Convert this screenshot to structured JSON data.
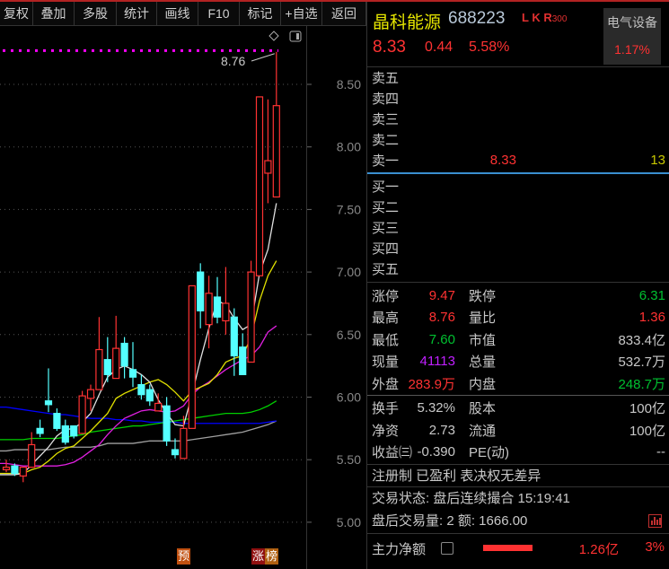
{
  "toolbar": {
    "items": [
      "复权",
      "叠加",
      "多股",
      "统计",
      "画线",
      "F10",
      "标记",
      "+自选",
      "返回"
    ]
  },
  "stock": {
    "name": "晶科能源",
    "code": "688223",
    "flags": "L K R",
    "index_tag": "300",
    "price": "8.33",
    "change": "0.44",
    "change_pct": "5.58%",
    "sector": "电气设备",
    "sector_pct": "1.17%"
  },
  "order_book": {
    "asks": [
      {
        "label": "卖五",
        "price": "",
        "vol": ""
      },
      {
        "label": "卖四",
        "price": "",
        "vol": ""
      },
      {
        "label": "卖三",
        "price": "",
        "vol": ""
      },
      {
        "label": "卖二",
        "price": "",
        "vol": ""
      },
      {
        "label": "卖一",
        "price": "8.33",
        "vol": "13"
      }
    ],
    "bids": [
      {
        "label": "买一"
      },
      {
        "label": "买二"
      },
      {
        "label": "买三"
      },
      {
        "label": "买四"
      },
      {
        "label": "买五"
      }
    ]
  },
  "stats": [
    {
      "a": "涨停",
      "b": "9.47",
      "bc": "red",
      "c": "跌停",
      "d": "6.31",
      "dc": "green"
    },
    {
      "a": "最高",
      "b": "8.76",
      "bc": "red",
      "c": "量比",
      "d": "1.36",
      "dc": "red"
    },
    {
      "a": "最低",
      "b": "7.60",
      "bc": "green",
      "c": "市值",
      "d": "833.4亿",
      "dc": "gray"
    },
    {
      "a": "现量",
      "b": "41113",
      "bc": "purple",
      "c": "总量",
      "d": "532.7万",
      "dc": "gray"
    },
    {
      "a": "外盘",
      "b": "283.9万",
      "bc": "red",
      "c": "内盘",
      "d": "248.7万",
      "dc": "green"
    }
  ],
  "stats2": [
    {
      "a": "换手",
      "b": "5.32%",
      "c": "股本",
      "d": "100亿"
    },
    {
      "a": "净资",
      "b": "2.73",
      "c": "流通",
      "d": "100亿"
    },
    {
      "a": "收益㈢",
      "b": "-0.390",
      "c": "PE(动)",
      "d": "--"
    }
  ],
  "info_line": "注册制 已盈利 表决权无差异",
  "trade_status": "交易状态: 盘后连续撮合 15:19:41",
  "after_hours": "盘后交易量: 2  额: 1666.00",
  "main_flow": {
    "label": "主力净额",
    "amount": "1.26亿",
    "pct": "3%",
    "bar_fraction": 0.55
  },
  "chart_tags": {
    "pre": "预",
    "up1": "涨",
    "up2": "榜"
  },
  "colors": {
    "up": "#ff3232",
    "down": "#54ffff",
    "ma_white": "#e0e0e0",
    "ma_yellow": "#e0e000",
    "ma_magenta": "#e020e0",
    "ma_green": "#00d000",
    "ma_blue": "#0000ff",
    "ma_gray": "#a0a0a0"
  },
  "chart_data": {
    "type": "candlestick",
    "y_ticks": [
      "8.50",
      "8.00",
      "7.50",
      "7.00",
      "6.50",
      "6.00",
      "5.50",
      "5.00"
    ],
    "ylim": [
      4.7,
      8.75
    ],
    "high_marker": "8.76",
    "high_line": 8.77,
    "ohlc": [
      [
        5.42,
        5.5,
        5.4,
        5.44
      ],
      [
        5.45,
        5.47,
        5.37,
        5.39
      ],
      [
        5.37,
        5.44,
        5.32,
        5.44
      ],
      [
        5.44,
        5.72,
        5.44,
        5.62
      ],
      [
        5.75,
        5.82,
        5.68,
        5.71
      ],
      [
        5.97,
        6.23,
        5.88,
        5.94
      ],
      [
        5.87,
        5.91,
        5.73,
        5.75
      ],
      [
        5.77,
        5.82,
        5.62,
        5.64
      ],
      [
        5.77,
        5.77,
        5.67,
        5.69
      ],
      [
        5.71,
        6.05,
        5.71,
        6.01
      ],
      [
        5.99,
        6.1,
        5.89,
        6.06
      ],
      [
        6.06,
        6.64,
        6.06,
        6.38
      ],
      [
        6.3,
        6.48,
        6.12,
        6.18
      ],
      [
        6.15,
        6.65,
        6.15,
        6.39
      ],
      [
        6.43,
        6.48,
        6.15,
        6.25
      ],
      [
        6.22,
        6.44,
        6.08,
        6.16
      ],
      [
        6.1,
        6.18,
        5.98,
        6.02
      ],
      [
        6.06,
        6.1,
        5.93,
        5.97
      ],
      [
        5.89,
        6.03,
        5.89,
        5.95
      ],
      [
        5.93,
        6.0,
        5.61,
        5.65
      ],
      [
        5.58,
        5.67,
        5.51,
        5.54
      ],
      [
        5.51,
        5.85,
        5.51,
        5.75
      ],
      [
        5.75,
        6.89,
        5.75,
        6.89
      ],
      [
        7.0,
        7.07,
        6.55,
        6.69
      ],
      [
        6.58,
        6.97,
        6.39,
        6.83
      ],
      [
        6.8,
        6.96,
        6.59,
        6.64
      ],
      [
        6.61,
        7.04,
        6.5,
        6.75
      ],
      [
        6.64,
        6.71,
        6.17,
        6.33
      ],
      [
        6.4,
        6.51,
        6.18,
        6.18
      ],
      [
        6.28,
        7.09,
        6.28,
        7.0
      ],
      [
        6.97,
        8.4,
        6.97,
        8.4
      ],
      [
        7.79,
        8.38,
        7.55,
        7.89
      ],
      [
        7.6,
        8.76,
        7.6,
        8.33
      ]
    ],
    "lines": {
      "gray": [
        5.57,
        5.58,
        5.58,
        5.58,
        5.58,
        5.58,
        5.59,
        5.6,
        5.6,
        5.6,
        5.6,
        5.61,
        5.63,
        5.63,
        5.63,
        5.63,
        5.64,
        5.65,
        5.65,
        5.65,
        5.65,
        5.65,
        5.66,
        5.67,
        5.68,
        5.69,
        5.7,
        5.71,
        5.72,
        5.74,
        5.76,
        5.78,
        5.81
      ],
      "blue": [
        5.92,
        5.91,
        5.9,
        5.89,
        5.88,
        5.87,
        5.86,
        5.86,
        5.85,
        5.84,
        5.83,
        5.83,
        5.83,
        5.82,
        5.82,
        5.81,
        5.81,
        5.8,
        5.8,
        5.8,
        5.8,
        5.79,
        5.79,
        5.79,
        5.79,
        5.79,
        5.79,
        5.79,
        5.79,
        5.79,
        5.79,
        5.8,
        5.81
      ],
      "green": [
        5.66,
        5.66,
        5.66,
        5.67,
        5.67,
        5.67,
        5.67,
        5.68,
        5.69,
        5.7,
        5.72,
        5.73,
        5.74,
        5.75,
        5.76,
        5.77,
        5.77,
        5.78,
        5.79,
        5.8,
        5.81,
        5.82,
        5.83,
        5.84,
        5.85,
        5.86,
        5.87,
        5.87,
        5.87,
        5.88,
        5.9,
        5.93,
        5.97
      ],
      "magenta": [
        5.47,
        5.46,
        5.45,
        5.45,
        5.45,
        5.45,
        5.45,
        5.46,
        5.48,
        5.52,
        5.57,
        5.62,
        5.7,
        5.77,
        5.83,
        5.86,
        5.89,
        5.9,
        5.89,
        5.88,
        5.89,
        5.93,
        6.02,
        6.08,
        6.12,
        6.17,
        6.22,
        6.26,
        6.3,
        6.33,
        6.4,
        6.52,
        6.57
      ],
      "yellow": [
        5.39,
        5.39,
        5.39,
        5.42,
        5.44,
        5.49,
        5.55,
        5.59,
        5.61,
        5.67,
        5.73,
        5.8,
        5.87,
        5.99,
        6.03,
        6.06,
        6.09,
        6.12,
        6.14,
        6.1,
        6.04,
        5.97,
        6.05,
        6.08,
        6.11,
        6.18,
        6.28,
        6.31,
        6.33,
        6.48,
        6.77,
        6.97,
        7.09
      ],
      "white": [
        5.38,
        5.38,
        5.39,
        5.46,
        5.53,
        5.6,
        5.69,
        5.74,
        5.75,
        5.8,
        5.87,
        6.02,
        6.16,
        6.22,
        6.25,
        6.22,
        6.18,
        6.12,
        5.98,
        5.87,
        5.78,
        5.77,
        6.02,
        6.3,
        6.55,
        6.77,
        6.74,
        6.63,
        6.54,
        6.58,
        6.99,
        7.18,
        7.55
      ]
    }
  }
}
